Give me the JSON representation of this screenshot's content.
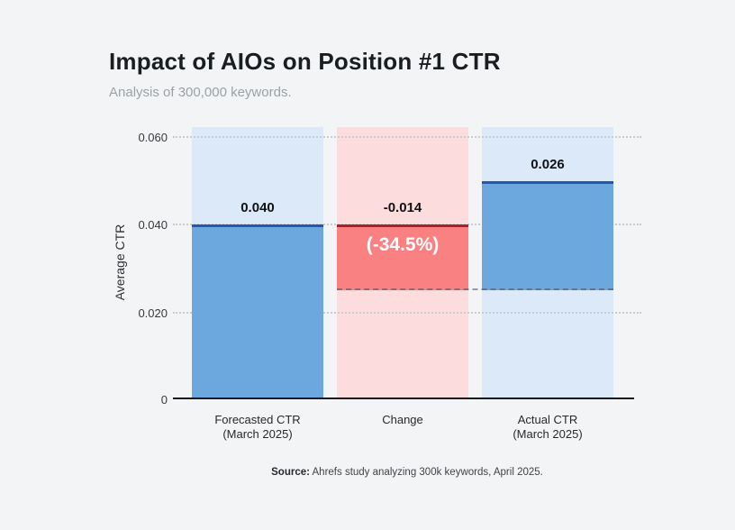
{
  "header": {
    "title": "Impact of AIOs on Position #1 CTR",
    "subtitle": "Analysis of 300,000 keywords."
  },
  "chart_data": {
    "type": "bar",
    "subtype": "waterfall",
    "title": "Impact of AIOs on Position #1 CTR",
    "subtitle": "Analysis of 300,000 keywords.",
    "xlabel": "",
    "ylabel": "Average CTR",
    "ylim": [
      0,
      0.062
    ],
    "ytick_labels": [
      "0.060",
      "0.040",
      "0.020",
      "0"
    ],
    "ytick_values": [
      0.06,
      0.04,
      0.02,
      0
    ],
    "grid": "horizontal-dotted",
    "legend_position": "none",
    "categories": [
      "Forecasted CTR (March 2025)",
      "Change",
      "Actual CTR (March 2025)"
    ],
    "values": [
      0.04,
      -0.014,
      0.026
    ],
    "percent_change": "-34.5%",
    "bars": [
      {
        "label_line1": "Forecasted CTR",
        "label_line2": "(March 2025)",
        "value": 0.04,
        "value_label": "0.040",
        "bar_color": "#6ca7dd",
        "band_color": "#dbe9f8",
        "edge_color": "#2458b0"
      },
      {
        "label_line1": "Change",
        "label_line2": "",
        "value": -0.014,
        "value_label": "-0.014",
        "annotation": "(-34.5%)",
        "bar_color": "#f98181",
        "band_color": "#fcdcdc",
        "edge_color": "#a82125",
        "note": "change segment drawn from 0.040 down to 0.026 with dashed line at 0.026 level"
      },
      {
        "label_line1": "Actual CTR",
        "label_line2": "(March 2025)",
        "value": 0.026,
        "value_label": "0.026",
        "bar_color": "#6ca7dd",
        "band_color": "#dbe9f8",
        "edge_color": "#2458b0"
      }
    ],
    "source_note": "Source: Ahrefs study analyzing 300k keywords, April 2025."
  },
  "footer": {
    "source_label": "Source:",
    "source_text": " Ahrefs study analyzing 300k keywords, April 2025."
  },
  "colors": {
    "background": "#f3f4f5",
    "blue_bar": "#6ca7dd",
    "blue_band": "#dbe9f8",
    "blue_edge": "#2458b0",
    "red_bar": "#f98181",
    "red_band": "#fcdcdc",
    "red_edge": "#a82125",
    "grid": "#c9cbd0",
    "title_text": "#1a1d21",
    "subtitle_text": "#9ba1a8"
  }
}
